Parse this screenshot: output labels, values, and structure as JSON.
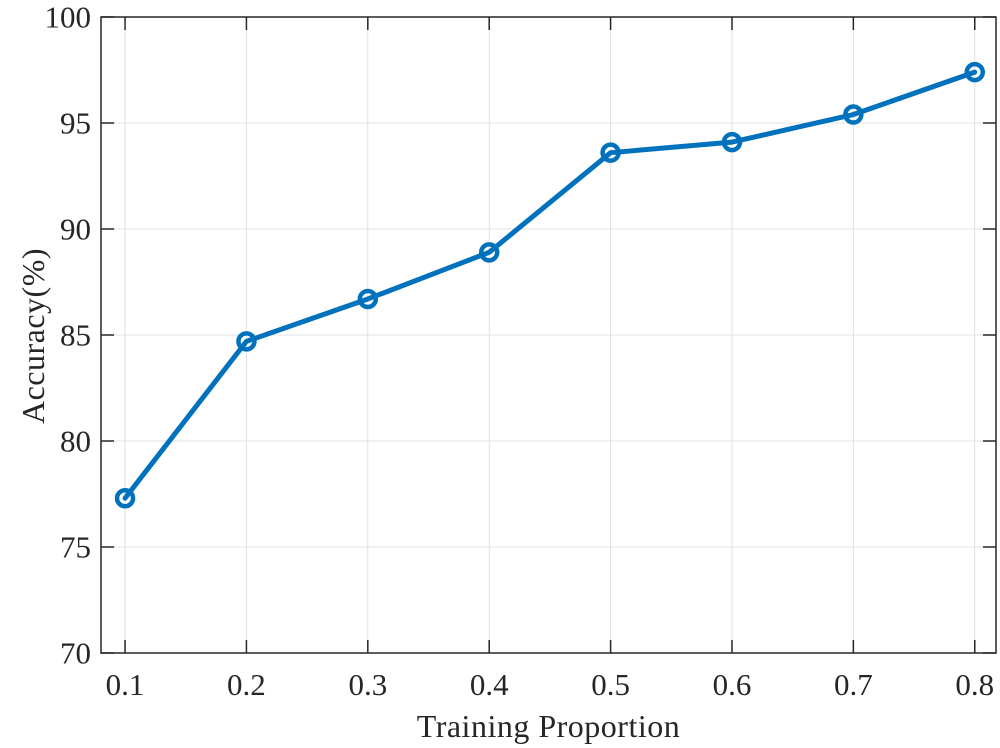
{
  "chart_data": {
    "type": "line",
    "title": "",
    "xlabel": "Training Proportion",
    "ylabel": "Accuracy(%)",
    "x": [
      0.1,
      0.2,
      0.3,
      0.4,
      0.5,
      0.6,
      0.7,
      0.8
    ],
    "values": [
      77.3,
      84.7,
      86.7,
      88.9,
      93.6,
      94.1,
      95.4,
      97.4
    ],
    "xlim": [
      0.0802,
      0.8175
    ],
    "ylim": [
      70,
      100
    ],
    "xticks": [
      0.1,
      0.2,
      0.3,
      0.4,
      0.5,
      0.6,
      0.7,
      0.8
    ],
    "xtick_labels": [
      "0.1",
      "0.2",
      "0.3",
      "0.4",
      "0.5",
      "0.6",
      "0.7",
      "0.8"
    ],
    "yticks": [
      70,
      75,
      80,
      85,
      90,
      95,
      100
    ],
    "ytick_labels": [
      "70",
      "75",
      "80",
      "85",
      "90",
      "95",
      "100"
    ],
    "grid": true,
    "legend_position": "none",
    "marker": "circle",
    "colors": {
      "line": "#0072BD",
      "axis": "#262626",
      "grid": "#e0e0e0",
      "background": "#ffffff"
    }
  }
}
